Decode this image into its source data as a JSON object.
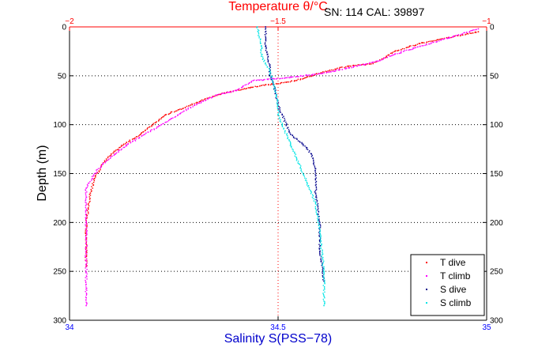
{
  "chart_data": {
    "type": "scatter",
    "title": "Temperature θ/°C",
    "annotation": "SN: 114  CAL: 39897",
    "xlabel": "Salinity S(PSS−78)",
    "ylabel": "Depth (m)",
    "y_axis": {
      "range": [
        0,
        300
      ],
      "reversed": true,
      "ticks": [
        "0",
        "50",
        "100",
        "150",
        "200",
        "250",
        "300"
      ],
      "grid": "dotted"
    },
    "x_bottom": {
      "name": "salinity",
      "range": [
        34,
        35
      ],
      "ticks": [
        "34",
        "34.5",
        "35"
      ],
      "color": "#0000ff"
    },
    "x_top": {
      "name": "temperature",
      "range": [
        -2,
        -1
      ],
      "ticks": [
        "−2",
        "−1.5",
        "−1"
      ],
      "color": "#ff0000"
    },
    "legend": {
      "position": "bottom-right",
      "entries": [
        {
          "label": "T dive",
          "color": "#ff0000"
        },
        {
          "label": "T climb",
          "color": "#ff00ff"
        },
        {
          "label": "S dive",
          "color": "#00008b"
        },
        {
          "label": "S climb",
          "color": "#00e5e5"
        }
      ]
    },
    "series": [
      {
        "name": "T dive",
        "axis": "temperature",
        "color": "#ff0000",
        "x": [
          -1.02,
          -1.08,
          -1.16,
          -1.22,
          -1.24,
          -1.26,
          -1.28,
          -1.33,
          -1.38,
          -1.42,
          -1.46,
          -1.5,
          -1.54,
          -1.6,
          -1.65,
          -1.71,
          -1.77,
          -1.8,
          -1.83,
          -1.87,
          -1.9,
          -1.92,
          -1.94,
          -1.95,
          -1.96,
          -1.96
        ],
        "y": [
          5,
          10,
          17,
          25,
          30,
          35,
          38,
          40,
          45,
          50,
          55,
          58,
          60,
          65,
          70,
          80,
          90,
          100,
          110,
          120,
          130,
          140,
          155,
          170,
          200,
          245
        ]
      },
      {
        "name": "T climb",
        "axis": "temperature",
        "color": "#ff00ff",
        "x": [
          -1.02,
          -1.08,
          -1.16,
          -1.22,
          -1.26,
          -1.33,
          -1.4,
          -1.48,
          -1.56,
          -1.6,
          -1.65,
          -1.7,
          -1.74,
          -1.78,
          -1.82,
          -1.86,
          -1.89,
          -1.92,
          -1.94,
          -1.96,
          -1.96,
          -1.96
        ],
        "y": [
          2,
          10,
          20,
          28,
          35,
          42,
          48,
          52,
          55,
          65,
          70,
          80,
          90,
          100,
          110,
          120,
          130,
          140,
          150,
          165,
          200,
          285
        ]
      },
      {
        "name": "S dive",
        "axis": "salinity",
        "color": "#00008b",
        "x": [
          34.47,
          34.47,
          34.48,
          34.48,
          34.49,
          34.5,
          34.51,
          34.52,
          34.53,
          34.56,
          34.58,
          34.59,
          34.59,
          34.6,
          34.6,
          34.61
        ],
        "y": [
          0,
          20,
          40,
          50,
          60,
          80,
          90,
          100,
          110,
          120,
          130,
          145,
          170,
          200,
          230,
          260
        ]
      },
      {
        "name": "S climb",
        "axis": "salinity",
        "color": "#00e5e5",
        "x": [
          34.45,
          34.46,
          34.46,
          34.48,
          34.49,
          34.5,
          34.5,
          34.51,
          34.53,
          34.55,
          34.57,
          34.59,
          34.6,
          34.61,
          34.61
        ],
        "y": [
          0,
          20,
          30,
          45,
          60,
          80,
          90,
          100,
          120,
          140,
          160,
          180,
          210,
          250,
          285
        ]
      }
    ]
  }
}
